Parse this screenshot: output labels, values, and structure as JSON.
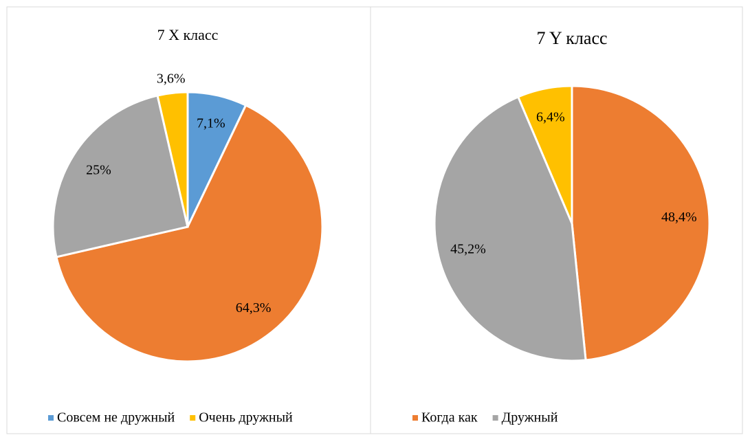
{
  "chart_data": [
    {
      "type": "pie",
      "title": "7 X класс",
      "categories": [
        "Совсем не дружный",
        "Когда как",
        "Дружный",
        "Очень дружный"
      ],
      "values": [
        7.1,
        64.3,
        25,
        3.6
      ],
      "value_labels": [
        "7,1%",
        "64,3%",
        "25%",
        "3,6%"
      ],
      "colors": [
        "#5b9bd5",
        "#ed7d31",
        "#a5a5a5",
        "#ffc000"
      ],
      "legend": [
        0,
        3
      ]
    },
    {
      "type": "pie",
      "title": "7 Y класс",
      "categories": [
        "Когда как",
        "Дружный",
        "Очень дружный"
      ],
      "values": [
        48.4,
        45.2,
        6.4
      ],
      "value_labels": [
        "48,4%",
        "45,2%",
        "6,4%"
      ],
      "colors": [
        "#ed7d31",
        "#a5a5a5",
        "#ffc000"
      ],
      "legend": [
        0,
        1
      ]
    }
  ]
}
